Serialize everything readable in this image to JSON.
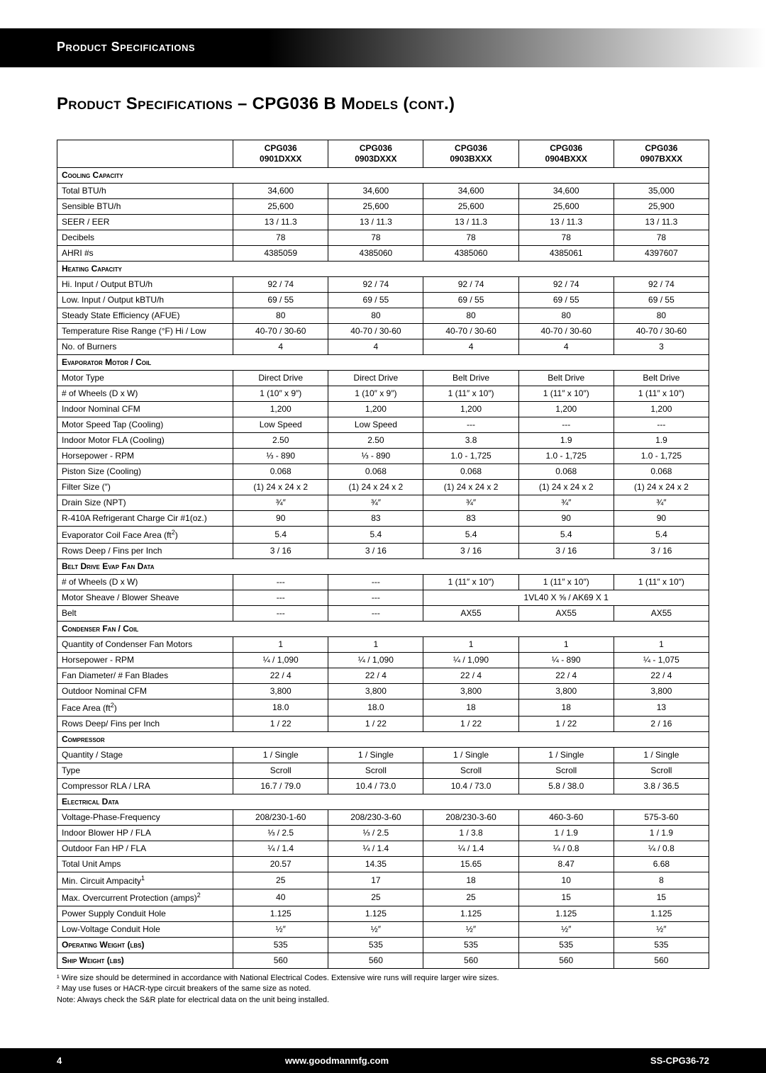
{
  "banner_text": "Product Specifications",
  "page_title": "Product Specifications – CPG036 B Models (cont.)",
  "columns": [
    "CPG036 0901DXXX",
    "CPG036 0903DXXX",
    "CPG036 0903BXXX",
    "CPG036 0904BXXX",
    "CPG036 0907BXXX"
  ],
  "sections": [
    {
      "title": "Cooling Capacity",
      "rows": [
        {
          "label": "Total BTU/h",
          "vals": [
            "34,600",
            "34,600",
            "34,600",
            "34,600",
            "35,000"
          ]
        },
        {
          "label": "Sensible BTU/h",
          "vals": [
            "25,600",
            "25,600",
            "25,600",
            "25,600",
            "25,900"
          ]
        },
        {
          "label": "SEER / EER",
          "vals": [
            "13 / 11.3",
            "13 / 11.3",
            "13 / 11.3",
            "13 / 11.3",
            "13 / 11.3"
          ]
        },
        {
          "label": "Decibels",
          "vals": [
            "78",
            "78",
            "78",
            "78",
            "78"
          ]
        },
        {
          "label": "AHRI #s",
          "vals": [
            "4385059",
            "4385060",
            "4385060",
            "4385061",
            "4397607"
          ]
        }
      ]
    },
    {
      "title": "Heating Capacity",
      "rows": [
        {
          "label": "Hi. Input / Output BTU/h",
          "vals": [
            "92 / 74",
            "92 / 74",
            "92 / 74",
            "92 / 74",
            "92 / 74"
          ]
        },
        {
          "label": "Low. Input / Output kBTU/h",
          "vals": [
            "69 / 55",
            "69 / 55",
            "69 / 55",
            "69 / 55",
            "69 / 55"
          ]
        },
        {
          "label": "Steady State Efficiency (AFUE)",
          "vals": [
            "80",
            "80",
            "80",
            "80",
            "80"
          ]
        },
        {
          "label": "Temperature Rise Range (°F) Hi / Low",
          "vals": [
            "40-70 / 30-60",
            "40-70 / 30-60",
            "40-70 / 30-60",
            "40-70 / 30-60",
            "40-70 / 30-60"
          ]
        },
        {
          "label": "No. of Burners",
          "vals": [
            "4",
            "4",
            "4",
            "4",
            "3"
          ]
        }
      ]
    },
    {
      "title": "Evaporator Motor / Coil",
      "rows": [
        {
          "label": "Motor Type",
          "vals": [
            "Direct Drive",
            "Direct Drive",
            "Belt Drive",
            "Belt Drive",
            "Belt Drive"
          ]
        },
        {
          "label": "# of Wheels (D x W)",
          "vals": [
            "1 (10″ x 9″)",
            "1 (10″ x 9″)",
            "1 (11″ x 10″)",
            "1 (11″ x 10″)",
            "1 (11″ x 10″)"
          ]
        },
        {
          "label": "Indoor Nominal CFM",
          "vals": [
            "1,200",
            "1,200",
            "1,200",
            "1,200",
            "1,200"
          ]
        },
        {
          "label": "Motor Speed Tap (Cooling)",
          "vals": [
            "Low Speed",
            "Low Speed",
            "---",
            "---",
            "---"
          ]
        },
        {
          "label": "Indoor Motor FLA (Cooling)",
          "vals": [
            "2.50",
            "2.50",
            "3.8",
            "1.9",
            "1.9"
          ]
        },
        {
          "label": "Horsepower - RPM",
          "vals": [
            "⅓ - 890",
            "⅓ - 890",
            "1.0 - 1,725",
            "1.0 - 1,725",
            "1.0 - 1,725"
          ]
        },
        {
          "label": "Piston Size (Cooling)",
          "vals": [
            "0.068",
            "0.068",
            "0.068",
            "0.068",
            "0.068"
          ]
        },
        {
          "label": "Filter Size (″)",
          "vals": [
            "(1) 24 x 24 x 2",
            "(1) 24 x 24 x 2",
            "(1) 24 x 24 x 2",
            "(1) 24 x 24 x 2",
            "(1) 24 x 24 x 2"
          ]
        },
        {
          "label": "Drain Size (NPT)",
          "vals": [
            "¾″",
            "¾″",
            "¾″",
            "¾″",
            "¾″"
          ]
        },
        {
          "label": "R-410A Refrigerant Charge  Cir #1(oz.)",
          "vals": [
            "90",
            "83",
            "83",
            "90",
            "90"
          ]
        },
        {
          "label": "Evaporator Coil Face Area (ft²)",
          "vals": [
            "5.4",
            "5.4",
            "5.4",
            "5.4",
            "5.4"
          ]
        },
        {
          "label": "Rows Deep / Fins per Inch",
          "vals": [
            "3 / 16",
            "3 / 16",
            "3 / 16",
            "3 / 16",
            "3 / 16"
          ]
        }
      ]
    },
    {
      "title": "Belt Drive Evap Fan Data",
      "rows": [
        {
          "label": "# of Wheels (D x W)",
          "vals": [
            "---",
            "---",
            "1 (11″ x 10″)",
            "1 (11″ x 10″)",
            "1 (11″ x 10″)"
          ]
        },
        {
          "label": "Motor Sheave / Blower Sheave",
          "vals": [
            "---",
            "---",
            "",
            "1VL40 X ⅝ / AK69 X 1",
            ""
          ],
          "span_right3": true
        },
        {
          "label": "Belt",
          "vals": [
            "---",
            "---",
            "AX55",
            "AX55",
            "AX55"
          ]
        }
      ]
    },
    {
      "title": "Condenser Fan / Coil",
      "rows": [
        {
          "label": "Quantity of Condenser Fan Motors",
          "vals": [
            "1",
            "1",
            "1",
            "1",
            "1"
          ]
        },
        {
          "label": "Horsepower - RPM",
          "vals": [
            "¼ / 1,090",
            "¼ / 1,090",
            "¼ / 1,090",
            "¼ - 890",
            "¼ - 1,075"
          ]
        },
        {
          "label": "Fan Diameter/ # Fan Blades",
          "vals": [
            "22 / 4",
            "22 / 4",
            "22 / 4",
            "22 / 4",
            "22 / 4"
          ]
        },
        {
          "label": "Outdoor Nominal CFM",
          "vals": [
            "3,800",
            "3,800",
            "3,800",
            "3,800",
            "3,800"
          ]
        },
        {
          "label": "Face Area (ft²)",
          "vals": [
            "18.0",
            "18.0",
            "18",
            "18",
            "13"
          ]
        },
        {
          "label": "Rows Deep/ Fins per Inch",
          "vals": [
            "1 / 22",
            "1 / 22",
            "1 / 22",
            "1 / 22",
            "2 / 16"
          ]
        }
      ]
    },
    {
      "title": "Compressor",
      "rows": [
        {
          "label": "Quantity / Stage",
          "vals": [
            "1 / Single",
            "1 / Single",
            "1 / Single",
            "1 / Single",
            "1 / Single"
          ]
        },
        {
          "label": "Type",
          "vals": [
            "Scroll",
            "Scroll",
            "Scroll",
            "Scroll",
            "Scroll"
          ]
        },
        {
          "label": "Compressor RLA / LRA",
          "vals": [
            "16.7 / 79.0",
            "10.4 / 73.0",
            "10.4 / 73.0",
            "5.8 / 38.0",
            "3.8 / 36.5"
          ]
        }
      ]
    },
    {
      "title": "Electrical Data",
      "rows": [
        {
          "label": "Voltage-Phase-Frequency",
          "vals": [
            "208/230-1-60",
            "208/230-3-60",
            "208/230-3-60",
            "460-3-60",
            "575-3-60"
          ]
        },
        {
          "label": "Indoor Blower HP / FLA",
          "vals": [
            "⅓ / 2.5",
            "⅓ / 2.5",
            "1 / 3.8",
            "1 / 1.9",
            "1 / 1.9"
          ]
        },
        {
          "label": "Outdoor Fan HP / FLA",
          "vals": [
            "¼ / 1.4",
            "¼ / 1.4",
            "¼ / 1.4",
            "¼ / 0.8",
            "¼ / 0.8"
          ]
        },
        {
          "label": "Total Unit Amps",
          "vals": [
            "20.57",
            "14.35",
            "15.65",
            "8.47",
            "6.68"
          ]
        },
        {
          "label": "Min. Circuit Ampacity¹",
          "vals": [
            "25",
            "17",
            "18",
            "10",
            "8"
          ]
        },
        {
          "label": "Max. Overcurrent Protection (amps)²",
          "vals": [
            "40",
            "25",
            "25",
            "15",
            "15"
          ]
        },
        {
          "label": "Power Supply Conduit Hole",
          "vals": [
            "1.125",
            "1.125",
            "1.125",
            "1.125",
            "1.125"
          ]
        },
        {
          "label": "Low-Voltage Conduit Hole",
          "vals": [
            "½″",
            "½″",
            "½″",
            "½″",
            "½″"
          ]
        }
      ]
    }
  ],
  "tail_rows": [
    {
      "label": "Operating Weight (lbs)",
      "vals": [
        "535",
        "535",
        "535",
        "535",
        "535"
      ]
    },
    {
      "label": "Ship Weight (lbs)",
      "vals": [
        "560",
        "560",
        "560",
        "560",
        "560"
      ]
    }
  ],
  "footnotes": [
    "¹  Wire size should be determined in accordance with National Electrical Codes. Extensive wire runs will require larger wire sizes.",
    "²  May use fuses or HACR-type circuit breakers of the same size as noted.",
    "Note: Always check the S&R plate for electrical data on the unit being installed."
  ],
  "footer": {
    "page": "4",
    "url": "www.goodmanmfg.com",
    "doc": "SS-CPG36-72"
  }
}
